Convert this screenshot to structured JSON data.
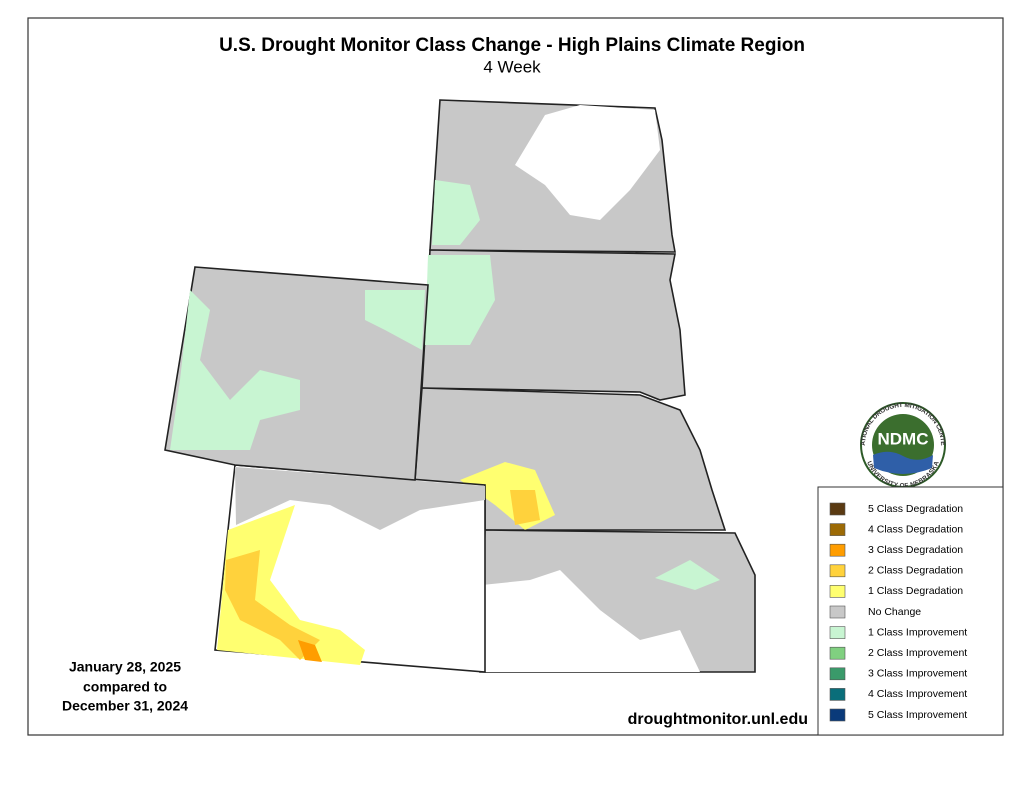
{
  "title": "U.S. Drought Monitor Class Change - High Plains Climate Region",
  "subtitle": "4 Week",
  "legend": [
    {
      "label": "5 Class Degradation",
      "color": "#5a3a12"
    },
    {
      "label": "4 Class Degradation",
      "color": "#9c6a05"
    },
    {
      "label": "3 Class Degradation",
      "color": "#ff9d00"
    },
    {
      "label": "2 Class Degradation",
      "color": "#ffd23c"
    },
    {
      "label": "1 Class Degradation",
      "color": "#ffff70"
    },
    {
      "label": "No Change",
      "color": "#c8c8c8"
    },
    {
      "label": "1 Class Improvement",
      "color": "#c8f5d2"
    },
    {
      "label": "2 Class Improvement",
      "color": "#80d080"
    },
    {
      "label": "3 Class Improvement",
      "color": "#3a9a6a"
    },
    {
      "label": "4 Class Improvement",
      "color": "#0a6e7a"
    },
    {
      "label": "5 Class Improvement",
      "color": "#0a3a7a"
    }
  ],
  "date": {
    "current": "January 28, 2025",
    "compared": "compared to",
    "previous": "December 31, 2024"
  },
  "url": "droughtmonitor.unl.edu",
  "logo": {
    "name": "NDMC",
    "ring_top": "NATIONAL DROUGHT MITIGATION CENTER",
    "ring_bottom": "UNIVERSITY OF NEBRASKA"
  }
}
